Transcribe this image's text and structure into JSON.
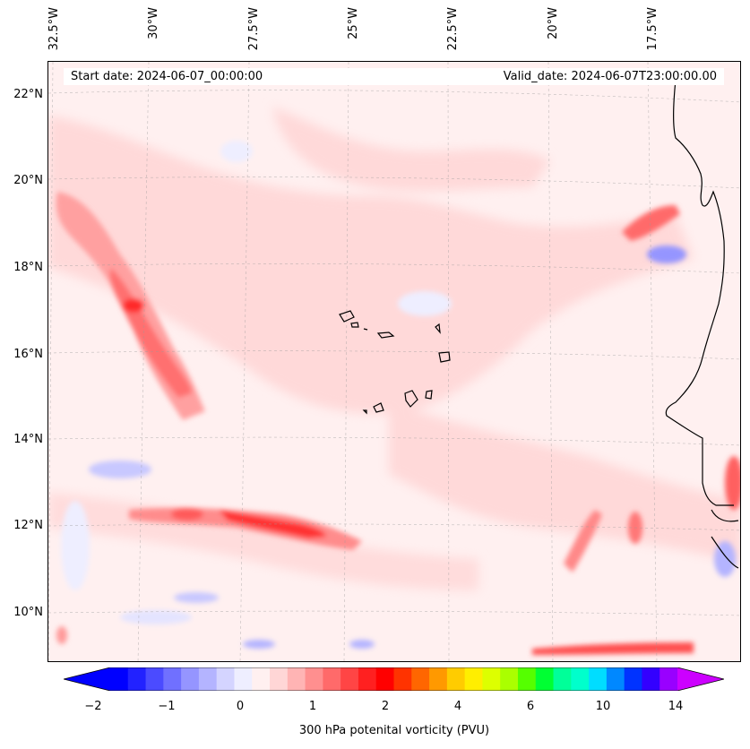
{
  "map": {
    "start_label": "Start date: 2024-06-07_00:00:00",
    "valid_label": "Valid_date: 2024-06-07T23:00:00.00",
    "longitude_labels": [
      "32.5°W",
      "30°W",
      "27.5°W",
      "25°W",
      "22.5°W",
      "20°W",
      "17.5°W"
    ],
    "latitude_labels": [
      "22°N",
      "20°N",
      "18°N",
      "16°N",
      "14°N",
      "12°N",
      "10°N"
    ],
    "colorbar": {
      "label": "300 hPa potenital vorticity (PVU)",
      "ticks": [
        "−2",
        "−1",
        "0",
        "1",
        "2",
        "4",
        "6",
        "10",
        "14"
      ],
      "colors": [
        "#0000ff",
        "#2222ff",
        "#4b4bff",
        "#7070ff",
        "#9595ff",
        "#b4b4ff",
        "#d4d4ff",
        "#eeeeff",
        "#fff0f0",
        "#ffd6d6",
        "#ffb4b4",
        "#ff8f8f",
        "#ff6a6a",
        "#ff4545",
        "#ff2020",
        "#ff0000",
        "#ff3300",
        "#ff6600",
        "#ff9900",
        "#ffcc00",
        "#ffee00",
        "#ddff00",
        "#aaff00",
        "#55ff00",
        "#00ff33",
        "#00ff99",
        "#00ffcc",
        "#00ddff",
        "#0088ff",
        "#0033ff",
        "#3300ff",
        "#9900ff"
      ],
      "extend_min_color": "#0000ff",
      "extend_max_color": "#cc00ff"
    }
  }
}
